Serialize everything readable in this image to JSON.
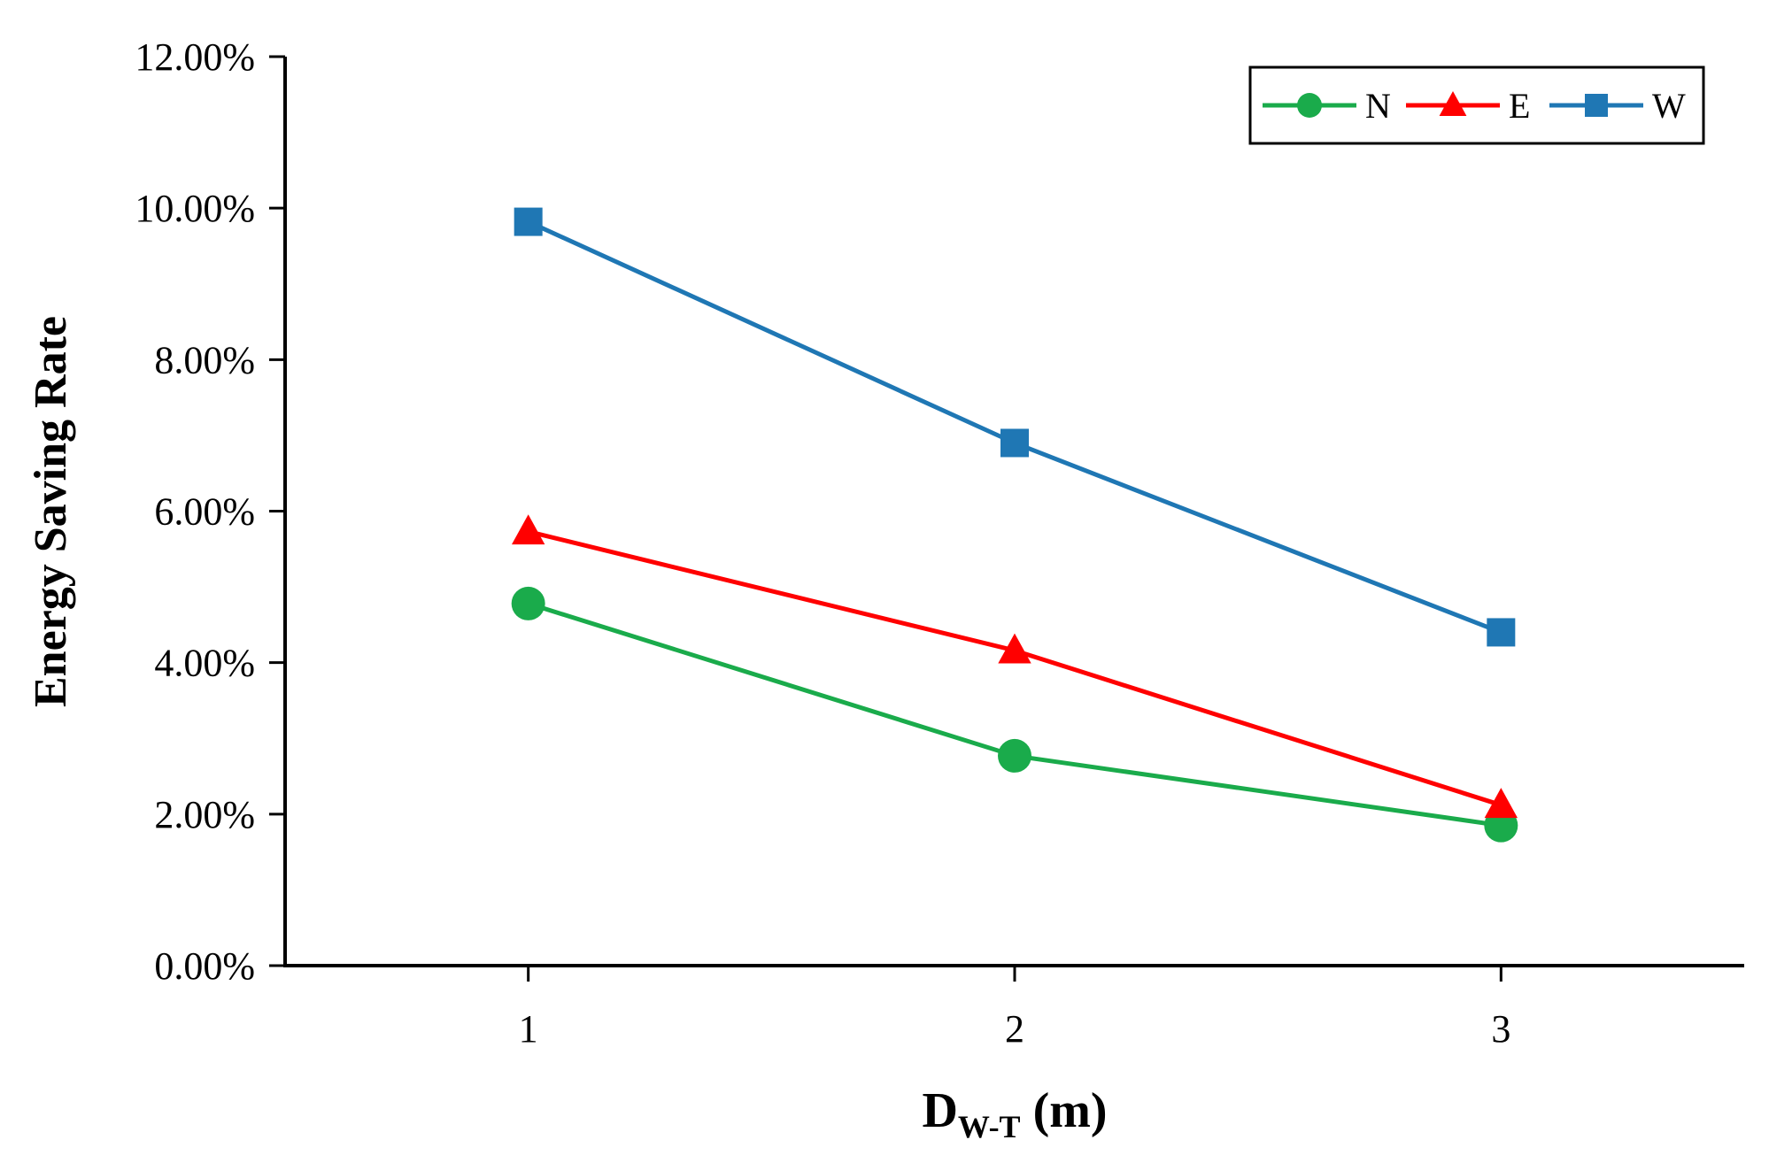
{
  "chart_data": {
    "type": "line",
    "title": "",
    "xlabel": {
      "main": "D",
      "sub": "W-T",
      "suffix": " (m)"
    },
    "ylabel": "Energy Saving Rate",
    "x": [
      1,
      2,
      3
    ],
    "x_tick_labels": [
      "1",
      "2",
      "3"
    ],
    "xlim": [
      0.5,
      3.5
    ],
    "ylim": [
      0,
      0.12
    ],
    "y_ticks": [
      0,
      0.02,
      0.04,
      0.06,
      0.08,
      0.1,
      0.12
    ],
    "y_tick_labels": [
      "0.00%",
      "2.00%",
      "4.00%",
      "6.00%",
      "8.00%",
      "10.00%",
      "12.00%"
    ],
    "grid": false,
    "legend_position": "top-right",
    "series": [
      {
        "name": "N",
        "values": [
          0.0478,
          0.0277,
          0.0185
        ],
        "color": "#1aab4b",
        "marker": "circle"
      },
      {
        "name": "E",
        "values": [
          0.0573,
          0.0416,
          0.0212
        ],
        "color": "#ff0000",
        "marker": "triangle"
      },
      {
        "name": "W",
        "values": [
          0.0982,
          0.069,
          0.044
        ],
        "color": "#1f77b4",
        "marker": "square"
      }
    ]
  }
}
